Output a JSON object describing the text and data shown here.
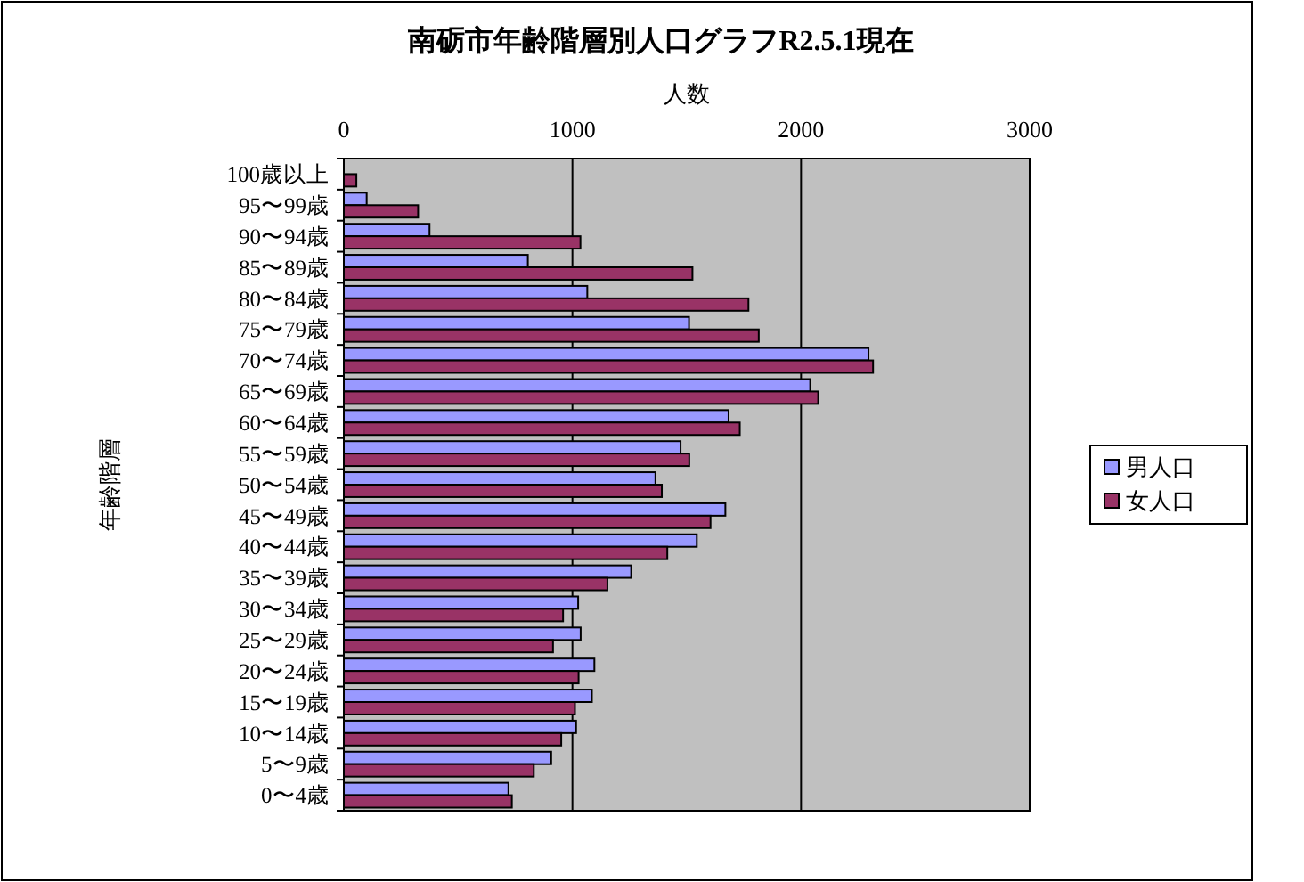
{
  "chart_data": {
    "type": "bar",
    "orientation": "horizontal",
    "title": "南砺市年齢階層別人口グラフR2.5.1現在",
    "xlabel": "人数",
    "ylabel": "年齢階層",
    "categories": [
      "100歳以上",
      "95〜99歳",
      "90〜94歳",
      "85〜89歳",
      "80〜84歳",
      "75〜79歳",
      "70〜74歳",
      "65〜69歳",
      "60〜64歳",
      "55〜59歳",
      "50〜54歳",
      "45〜49歳",
      "40〜44歳",
      "35〜39歳",
      "30〜34歳",
      "25〜29歳",
      "20〜24歳",
      "15〜19歳",
      "10〜14歳",
      "5〜9歳",
      "0〜4歳"
    ],
    "series": [
      {
        "name": "男人口",
        "color": "#9999ff",
        "values": [
          null,
          100,
          375,
          805,
          1065,
          1510,
          2295,
          2040,
          1683,
          1473,
          1363,
          1669,
          1544,
          1257,
          1025,
          1036,
          1096,
          1085,
          1016,
          907,
          720
        ]
      },
      {
        "name": "女人口",
        "color": "#993366",
        "values": [
          55,
          325,
          1035,
          1525,
          1770,
          1815,
          2315,
          2075,
          1732,
          1511,
          1391,
          1604,
          1415,
          1153,
          959,
          915,
          1027,
          1011,
          951,
          831,
          735
        ]
      }
    ],
    "xlim": [
      0,
      3000
    ],
    "xticks": [
      0,
      1000,
      2000,
      3000
    ],
    "grid": "x",
    "legend": "right"
  }
}
